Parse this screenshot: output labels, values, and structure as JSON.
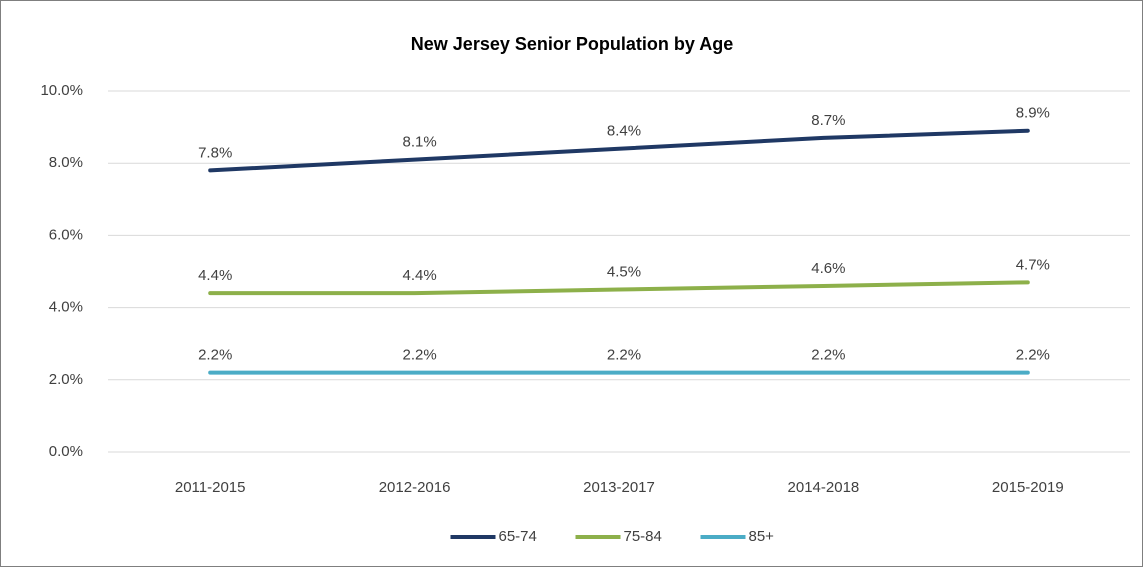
{
  "chart_data": {
    "type": "line",
    "title": "New Jersey Senior Population by Age",
    "categories": [
      "2011-2015",
      "2012-2016",
      "2013-2017",
      "2014-2018",
      "2015-2019"
    ],
    "series": [
      {
        "name": "65-74",
        "color": "#1f3864",
        "values": [
          7.8,
          8.1,
          8.4,
          8.7,
          8.9
        ],
        "value_labels": [
          "7.8%",
          "8.1%",
          "8.4%",
          "8.7%",
          "8.9%"
        ]
      },
      {
        "name": "75-84",
        "color": "#8db04a",
        "values": [
          4.4,
          4.4,
          4.5,
          4.6,
          4.7
        ],
        "value_labels": [
          "4.4%",
          "4.4%",
          "4.5%",
          "4.6%",
          "4.7%"
        ]
      },
      {
        "name": "85+",
        "color": "#4bacc6",
        "values": [
          2.2,
          2.2,
          2.2,
          2.2,
          2.2
        ],
        "value_labels": [
          "2.2%",
          "2.2%",
          "2.2%",
          "2.2%",
          "2.2%"
        ]
      }
    ],
    "ylim": [
      0,
      10
    ],
    "yticks": [
      {
        "value": 0,
        "label": "0.0%"
      },
      {
        "value": 2,
        "label": "2.0%"
      },
      {
        "value": 4,
        "label": "4.0%"
      },
      {
        "value": 6,
        "label": "6.0%"
      },
      {
        "value": 8,
        "label": "8.0%"
      },
      {
        "value": 10,
        "label": "10.0%"
      }
    ],
    "grid": true,
    "legend": "bottom"
  }
}
